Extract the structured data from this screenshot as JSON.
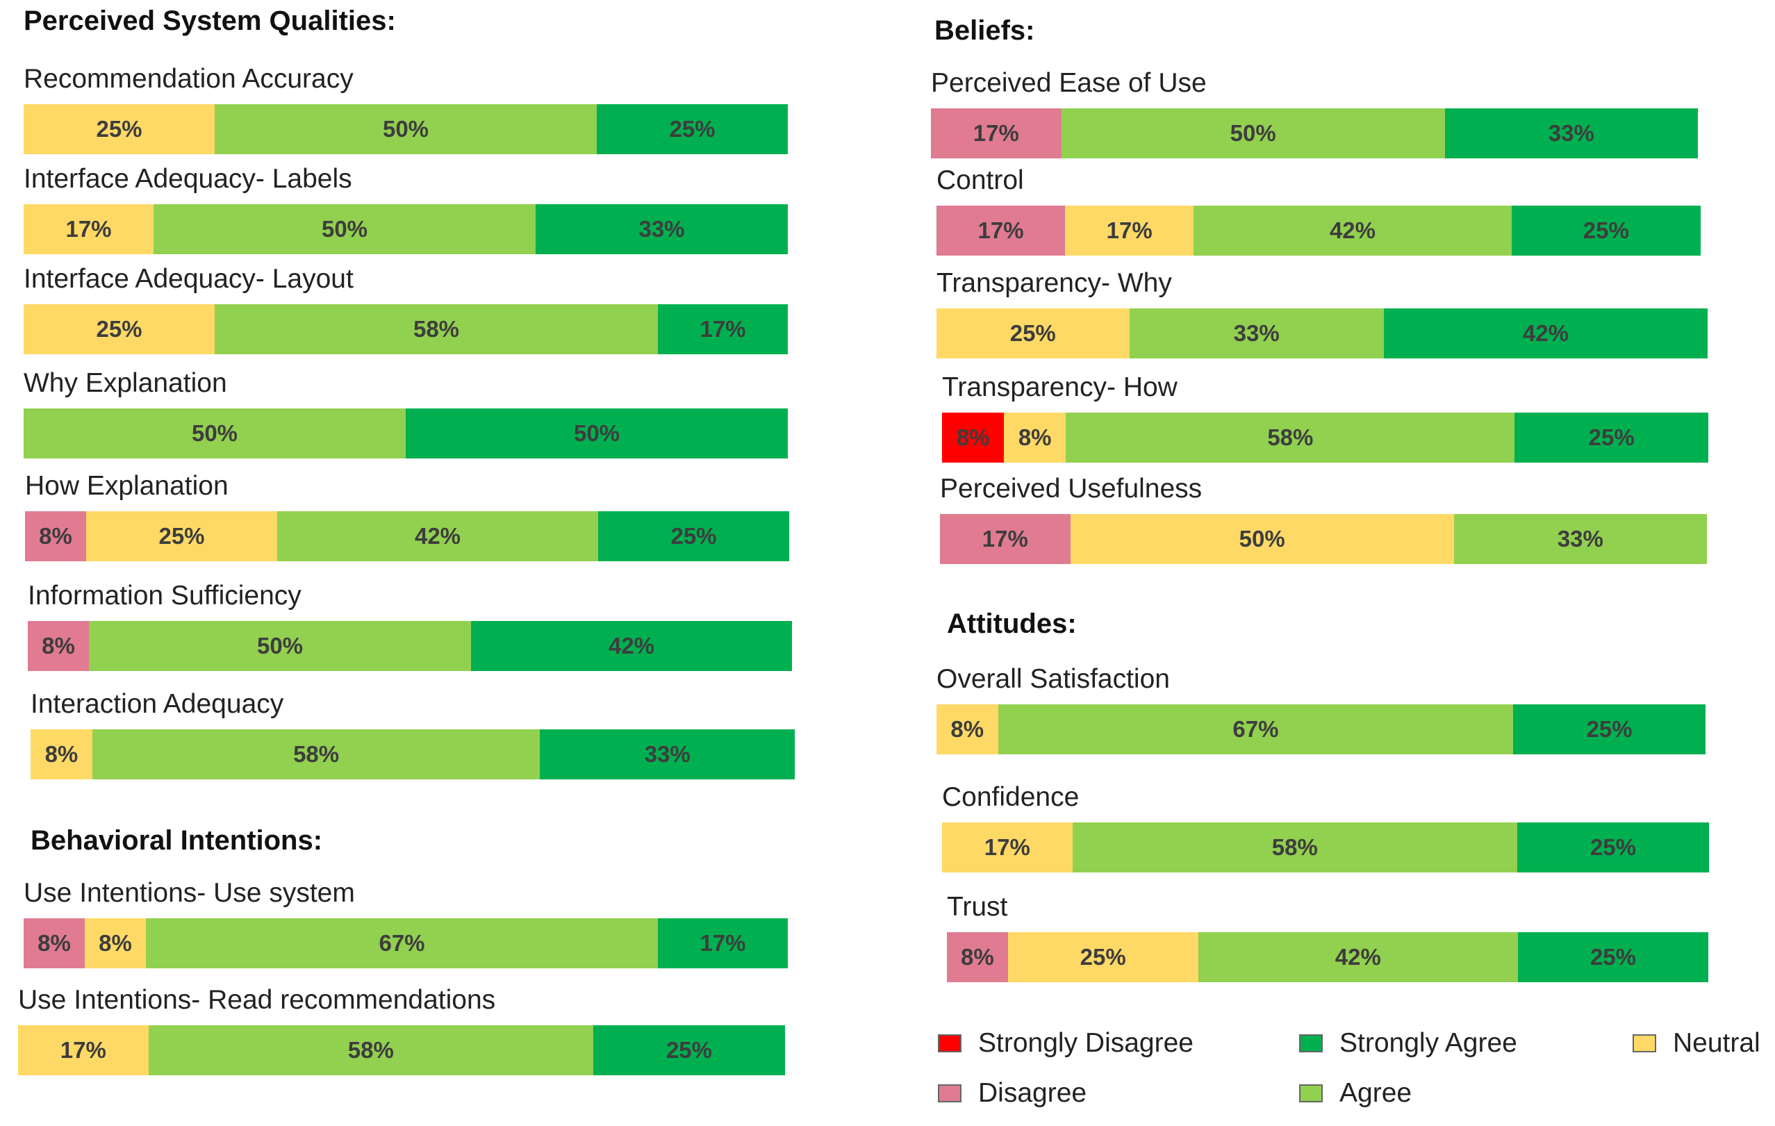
{
  "colors": {
    "strongly_disagree": "#ff0000",
    "disagree": "#e07b91",
    "neutral": "#ffd966",
    "agree": "#92d050",
    "strongly_agree": "#00b050"
  },
  "sections": {
    "perceived": "Perceived System Qualities:",
    "behavioral": "Behavioral Intentions:",
    "beliefs": "Beliefs:",
    "attitudes": "Attitudes:"
  },
  "legend": [
    {
      "key": "strongly_disagree",
      "label": "Strongly Disagree"
    },
    {
      "key": "strongly_agree",
      "label": "Strongly Agree"
    },
    {
      "key": "neutral",
      "label": "Neutral"
    },
    {
      "key": "disagree",
      "label": "Disagree"
    },
    {
      "key": "agree",
      "label": "Agree"
    }
  ],
  "chart_data": {
    "type": "bar",
    "orientation": "horizontal",
    "stacked": true,
    "normalized": true,
    "series_order": [
      "Strongly Disagree",
      "Disagree",
      "Neutral",
      "Agree",
      "Strongly Agree"
    ],
    "items": [
      {
        "group": "perceived",
        "label": "Recommendation Accuracy",
        "segments": [
          {
            "category": "neutral",
            "value": 25,
            "text": "25%"
          },
          {
            "category": "agree",
            "value": 50,
            "text": "50%"
          },
          {
            "category": "strongly_agree",
            "value": 25,
            "text": "25%"
          }
        ]
      },
      {
        "group": "perceived",
        "label": "Interface Adequacy- Labels",
        "segments": [
          {
            "category": "neutral",
            "value": 17,
            "text": "17%"
          },
          {
            "category": "agree",
            "value": 50,
            "text": "50%"
          },
          {
            "category": "strongly_agree",
            "value": 33,
            "text": "33%"
          }
        ]
      },
      {
        "group": "perceived",
        "label": "Interface Adequacy- Layout",
        "segments": [
          {
            "category": "neutral",
            "value": 25,
            "text": "25%"
          },
          {
            "category": "agree",
            "value": 58,
            "text": "58%"
          },
          {
            "category": "strongly_agree",
            "value": 17,
            "text": "17%"
          }
        ]
      },
      {
        "group": "perceived",
        "label": "Why Explanation",
        "segments": [
          {
            "category": "agree",
            "value": 50,
            "text": "50%"
          },
          {
            "category": "strongly_agree",
            "value": 50,
            "text": "50%"
          }
        ]
      },
      {
        "group": "perceived",
        "label": "How Explanation",
        "segments": [
          {
            "category": "disagree",
            "value": 8,
            "text": "8%"
          },
          {
            "category": "neutral",
            "value": 25,
            "text": "25%"
          },
          {
            "category": "agree",
            "value": 42,
            "text": "42%"
          },
          {
            "category": "strongly_agree",
            "value": 25,
            "text": "25%"
          }
        ]
      },
      {
        "group": "perceived",
        "label": "Information Sufficiency",
        "segments": [
          {
            "category": "disagree",
            "value": 8,
            "text": "8%"
          },
          {
            "category": "agree",
            "value": 50,
            "text": "50%"
          },
          {
            "category": "strongly_agree",
            "value": 42,
            "text": "42%"
          }
        ]
      },
      {
        "group": "perceived",
        "label": "Interaction Adequacy",
        "segments": [
          {
            "category": "neutral",
            "value": 8,
            "text": "8%"
          },
          {
            "category": "agree",
            "value": 58,
            "text": "58%"
          },
          {
            "category": "strongly_agree",
            "value": 33,
            "text": "33%"
          }
        ]
      },
      {
        "group": "behavioral",
        "label": "Use Intentions- Use system",
        "segments": [
          {
            "category": "disagree",
            "value": 8,
            "text": "8%"
          },
          {
            "category": "neutral",
            "value": 8,
            "text": "8%"
          },
          {
            "category": "agree",
            "value": 67,
            "text": "67%"
          },
          {
            "category": "strongly_agree",
            "value": 17,
            "text": "17%"
          }
        ]
      },
      {
        "group": "behavioral",
        "label": "Use Intentions- Read recommendations",
        "segments": [
          {
            "category": "neutral",
            "value": 17,
            "text": "17%"
          },
          {
            "category": "agree",
            "value": 58,
            "text": "58%"
          },
          {
            "category": "strongly_agree",
            "value": 25,
            "text": "25%"
          }
        ]
      },
      {
        "group": "beliefs",
        "label": "Perceived Ease of Use",
        "segments": [
          {
            "category": "disagree",
            "value": 17,
            "text": "17%"
          },
          {
            "category": "agree",
            "value": 50,
            "text": "50%"
          },
          {
            "category": "strongly_agree",
            "value": 33,
            "text": "33%"
          }
        ]
      },
      {
        "group": "beliefs",
        "label": "Control",
        "segments": [
          {
            "category": "disagree",
            "value": 17,
            "text": "17%"
          },
          {
            "category": "neutral",
            "value": 17,
            "text": "17%"
          },
          {
            "category": "agree",
            "value": 42,
            "text": "42%"
          },
          {
            "category": "strongly_agree",
            "value": 25,
            "text": "25%"
          }
        ]
      },
      {
        "group": "beliefs",
        "label": "Transparency- Why",
        "segments": [
          {
            "category": "neutral",
            "value": 25,
            "text": "25%"
          },
          {
            "category": "agree",
            "value": 33,
            "text": "33%"
          },
          {
            "category": "strongly_agree",
            "value": 42,
            "text": "42%"
          }
        ]
      },
      {
        "group": "beliefs",
        "label": "Transparency- How",
        "segments": [
          {
            "category": "strongly_disagree",
            "value": 8,
            "text": "8%"
          },
          {
            "category": "neutral",
            "value": 8,
            "text": "8%"
          },
          {
            "category": "agree",
            "value": 58,
            "text": "58%"
          },
          {
            "category": "strongly_agree",
            "value": 25,
            "text": "25%"
          }
        ]
      },
      {
        "group": "beliefs",
        "label": "Perceived Usefulness",
        "segments": [
          {
            "category": "disagree",
            "value": 17,
            "text": "17%"
          },
          {
            "category": "neutral",
            "value": 50,
            "text": "50%"
          },
          {
            "category": "agree",
            "value": 33,
            "text": "33%"
          }
        ]
      },
      {
        "group": "attitudes",
        "label": "Overall Satisfaction",
        "segments": [
          {
            "category": "neutral",
            "value": 8,
            "text": "8%"
          },
          {
            "category": "agree",
            "value": 67,
            "text": "67%"
          },
          {
            "category": "strongly_agree",
            "value": 25,
            "text": "25%"
          }
        ]
      },
      {
        "group": "attitudes",
        "label": "Confidence",
        "segments": [
          {
            "category": "neutral",
            "value": 17,
            "text": "17%"
          },
          {
            "category": "agree",
            "value": 58,
            "text": "58%"
          },
          {
            "category": "strongly_agree",
            "value": 25,
            "text": "25%"
          }
        ]
      },
      {
        "group": "attitudes",
        "label": "Trust",
        "segments": [
          {
            "category": "disagree",
            "value": 8,
            "text": "8%"
          },
          {
            "category": "neutral",
            "value": 25,
            "text": "25%"
          },
          {
            "category": "agree",
            "value": 42,
            "text": "42%"
          },
          {
            "category": "strongly_agree",
            "value": 25,
            "text": "25%"
          }
        ]
      }
    ]
  }
}
